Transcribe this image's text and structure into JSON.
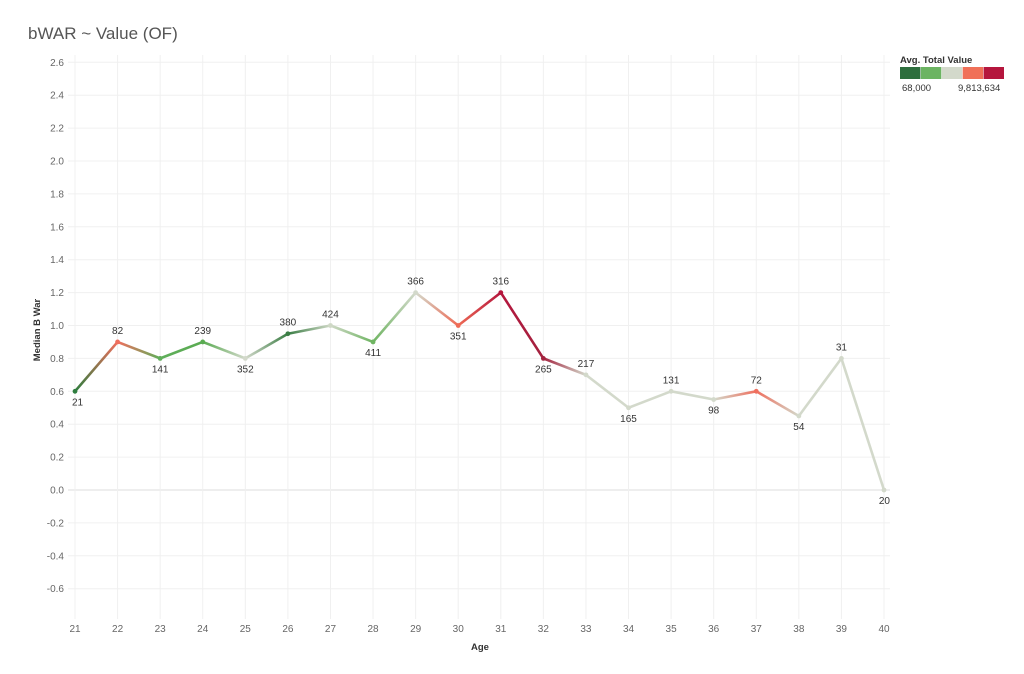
{
  "chart_data": {
    "type": "line",
    "title": "bWAR ~ Value (OF)",
    "xlabel": "Age",
    "ylabel": "Median B War",
    "ylim": [
      -0.7,
      2.65
    ],
    "xlim": [
      21,
      40
    ],
    "y_ticks": [
      "2.6",
      "2.4",
      "2.2",
      "2.0",
      "1.8",
      "1.6",
      "1.4",
      "1.2",
      "1.0",
      "0.8",
      "0.6",
      "0.4",
      "0.2",
      "0.0",
      "-0.2",
      "-0.4",
      "-0.6"
    ],
    "x": [
      21,
      22,
      23,
      24,
      25,
      26,
      27,
      28,
      29,
      30,
      31,
      32,
      33,
      34,
      35,
      36,
      37,
      38,
      39,
      40
    ],
    "values": [
      0.6,
      0.9,
      0.8,
      0.9,
      0.8,
      0.95,
      1.0,
      0.9,
      1.2,
      1.0,
      1.2,
      0.8,
      0.7,
      0.5,
      0.6,
      0.55,
      0.6,
      0.45,
      0.8,
      0.0
    ],
    "labels": [
      "21",
      "82",
      "141",
      "239",
      "352",
      "380",
      "424",
      "411",
      "366",
      "351",
      "316",
      "265",
      "217",
      "165",
      "131",
      "98",
      "72",
      "54",
      "31",
      "20"
    ],
    "label_pos": [
      "below",
      "above",
      "below",
      "above",
      "below",
      "above",
      "above",
      "below",
      "above",
      "below",
      "above",
      "below",
      "above",
      "below",
      "above",
      "below",
      "above",
      "below",
      "above",
      "below"
    ],
    "point_colors": [
      "#2e7d3e",
      "#ef6f5e",
      "#5fae5a",
      "#5aab52",
      "#d3d9cb",
      "#3a7d44",
      "#cfd8c6",
      "#6fb562",
      "#d3d9cb",
      "#ee6a55",
      "#b5163d",
      "#a3233f",
      "#d3d9cb",
      "#d3d9cb",
      "#d3d9cb",
      "#d3d9cb",
      "#ef6f5e",
      "#d3d9cb",
      "#d3d9cb",
      "#d3d9cb"
    ],
    "grid": true,
    "legend": {
      "title": "Avg. Total Value",
      "min_label": "68,000",
      "max_label": "9,813,634",
      "colors": [
        "#2e6f3e",
        "#6cb462",
        "#d3d9cb",
        "#f07058",
        "#b5163d"
      ],
      "placement": "top-right"
    }
  }
}
